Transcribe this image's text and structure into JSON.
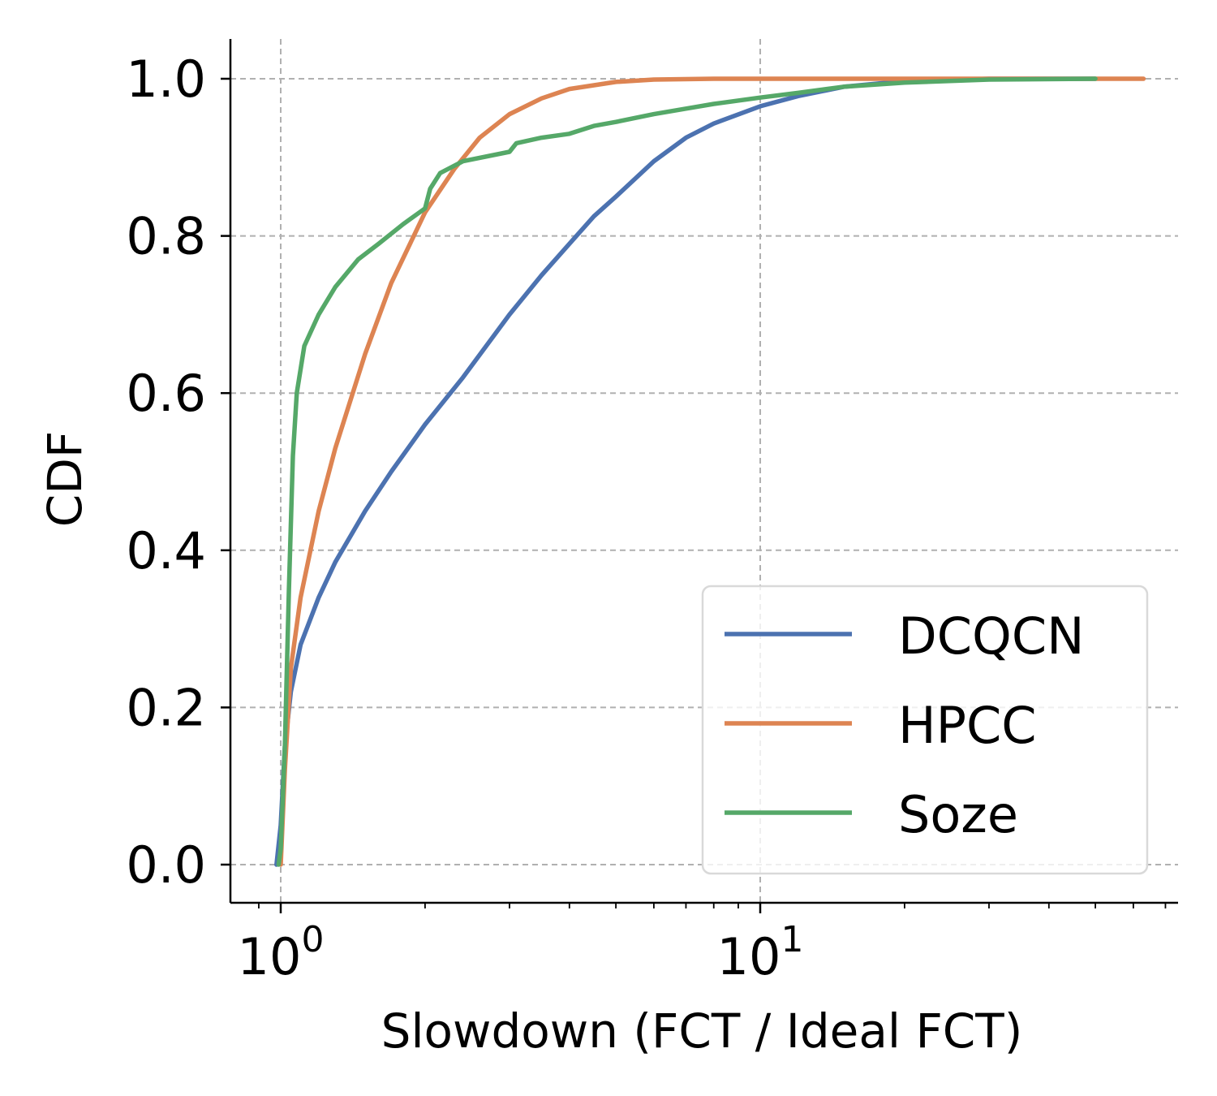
{
  "chart_data": {
    "type": "line",
    "title": "",
    "xlabel": "Slowdown (FCT / Ideal FCT)",
    "ylabel": "CDF",
    "xscale": "log",
    "xlim": [
      0.9,
      70
    ],
    "ylim": [
      -0.05,
      1.05
    ],
    "grid": true,
    "legend_position": "lower-right",
    "x_ticks": [
      {
        "value": 1,
        "base": "10",
        "exp": "0"
      },
      {
        "value": 10,
        "base": "10",
        "exp": "1"
      }
    ],
    "y_ticks": [
      {
        "value": 0.0,
        "label": "0.0"
      },
      {
        "value": 0.2,
        "label": "0.2"
      },
      {
        "value": 0.4,
        "label": "0.4"
      },
      {
        "value": 0.6,
        "label": "0.6"
      },
      {
        "value": 0.8,
        "label": "0.8"
      },
      {
        "value": 1.0,
        "label": "1.0"
      }
    ],
    "series": [
      {
        "name": "DCQCN",
        "color": "#4c72b0",
        "points": [
          [
            0.98,
            0.0
          ],
          [
            1.0,
            0.05
          ],
          [
            1.02,
            0.15
          ],
          [
            1.05,
            0.22
          ],
          [
            1.1,
            0.28
          ],
          [
            1.2,
            0.34
          ],
          [
            1.3,
            0.385
          ],
          [
            1.5,
            0.45
          ],
          [
            1.7,
            0.5
          ],
          [
            2.0,
            0.56
          ],
          [
            2.4,
            0.62
          ],
          [
            3.0,
            0.7
          ],
          [
            3.5,
            0.75
          ],
          [
            4.0,
            0.79
          ],
          [
            4.5,
            0.825
          ],
          [
            5.0,
            0.85
          ],
          [
            6.0,
            0.895
          ],
          [
            7.0,
            0.925
          ],
          [
            8.0,
            0.943
          ],
          [
            10.0,
            0.965
          ],
          [
            12.0,
            0.978
          ],
          [
            15.0,
            0.99
          ],
          [
            20.0,
            0.997
          ],
          [
            30.0,
            1.0
          ],
          [
            50.0,
            1.0
          ]
        ]
      },
      {
        "name": "HPCC",
        "color": "#dd8452",
        "points": [
          [
            1.0,
            0.0
          ],
          [
            1.02,
            0.12
          ],
          [
            1.05,
            0.25
          ],
          [
            1.1,
            0.34
          ],
          [
            1.2,
            0.45
          ],
          [
            1.3,
            0.53
          ],
          [
            1.5,
            0.65
          ],
          [
            1.7,
            0.74
          ],
          [
            2.0,
            0.83
          ],
          [
            2.3,
            0.885
          ],
          [
            2.6,
            0.925
          ],
          [
            3.0,
            0.955
          ],
          [
            3.5,
            0.975
          ],
          [
            4.0,
            0.987
          ],
          [
            5.0,
            0.996
          ],
          [
            6.0,
            0.999
          ],
          [
            8.0,
            1.0
          ],
          [
            20.0,
            1.0
          ],
          [
            40.0,
            1.0
          ],
          [
            63.0,
            1.0
          ]
        ]
      },
      {
        "name": "Soze",
        "color": "#55a868",
        "points": [
          [
            0.99,
            0.0
          ],
          [
            1.0,
            0.02
          ],
          [
            1.02,
            0.15
          ],
          [
            1.04,
            0.35
          ],
          [
            1.06,
            0.52
          ],
          [
            1.08,
            0.6
          ],
          [
            1.12,
            0.66
          ],
          [
            1.2,
            0.7
          ],
          [
            1.3,
            0.735
          ],
          [
            1.45,
            0.77
          ],
          [
            1.6,
            0.79
          ],
          [
            1.8,
            0.815
          ],
          [
            2.0,
            0.835
          ],
          [
            2.05,
            0.86
          ],
          [
            2.15,
            0.88
          ],
          [
            2.4,
            0.895
          ],
          [
            3.0,
            0.907
          ],
          [
            3.1,
            0.918
          ],
          [
            3.5,
            0.925
          ],
          [
            4.0,
            0.93
          ],
          [
            4.5,
            0.94
          ],
          [
            5.0,
            0.945
          ],
          [
            6.0,
            0.955
          ],
          [
            7.0,
            0.962
          ],
          [
            8.0,
            0.968
          ],
          [
            10.0,
            0.976
          ],
          [
            12.0,
            0.982
          ],
          [
            15.0,
            0.99
          ],
          [
            20.0,
            0.995
          ],
          [
            30.0,
            0.999
          ],
          [
            50.0,
            1.0
          ]
        ]
      }
    ]
  }
}
